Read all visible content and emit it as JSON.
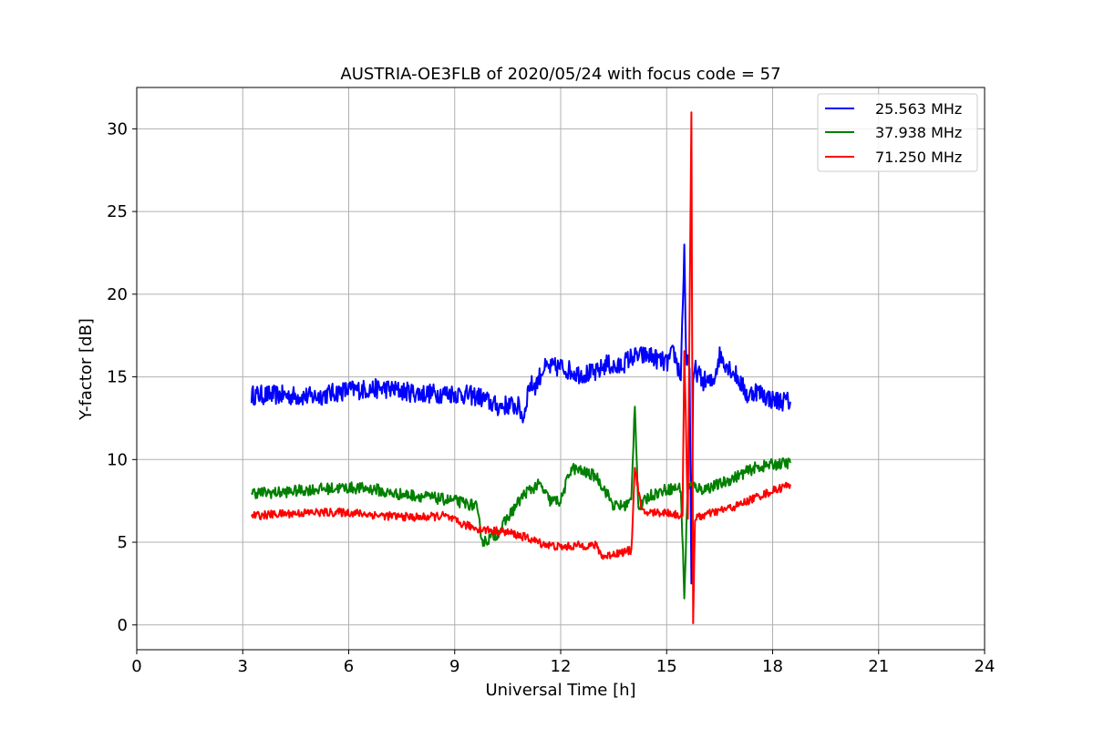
{
  "chart_data": {
    "type": "line",
    "title": "AUSTRIA-OE3FLB of 2020/05/24 with focus code = 57",
    "xlabel": "Universal Time [h]",
    "ylabel": "Y-factor [dB]",
    "xlim": [
      0,
      24
    ],
    "ylim": [
      -1.5,
      32.5
    ],
    "xticks": [
      "0",
      "3",
      "6",
      "9",
      "12",
      "15",
      "18",
      "21",
      "24"
    ],
    "yticks": [
      "0",
      "5",
      "10",
      "15",
      "20",
      "25",
      "30"
    ],
    "grid": true,
    "legend_position": "top-right",
    "series": [
      {
        "name": "25.563 MHz",
        "color": "#0000ff",
        "noise": 0.6,
        "x": [
          3.25,
          4,
          5,
          6,
          7,
          8,
          9,
          9.7,
          10.2,
          10.5,
          10.8,
          10.95,
          11.1,
          11.3,
          11.5,
          12,
          12.5,
          13,
          13.3,
          13.6,
          14,
          14.5,
          15,
          15.2,
          15.4,
          15.5,
          15.55,
          15.65,
          15.7,
          15.75,
          15.8,
          16,
          16.3,
          16.5,
          17,
          17.3,
          17.5,
          18,
          18.5
        ],
        "y": [
          13.9,
          13.9,
          13.8,
          14.2,
          14.3,
          14,
          14,
          13.8,
          13.2,
          13.3,
          13.2,
          12.5,
          14.5,
          14.5,
          15.5,
          15.6,
          15.2,
          15.2,
          15.8,
          15.5,
          16.2,
          16.3,
          15.8,
          16.5,
          15,
          23,
          16,
          15.5,
          2.5,
          14.8,
          15.5,
          14.8,
          14.6,
          16.3,
          15,
          13.8,
          14.2,
          13.6,
          13.5
        ]
      },
      {
        "name": "37.938 MHz",
        "color": "#008000",
        "noise": 0.35,
        "x": [
          3.25,
          4,
          5,
          6,
          6.8,
          7,
          8,
          9,
          9.6,
          9.8,
          10.2,
          10.6,
          11,
          11.4,
          11.7,
          12,
          12.3,
          12.7,
          13,
          13.3,
          13.5,
          13.8,
          14,
          14.1,
          14.2,
          14.5,
          15,
          15.4,
          15.5,
          15.6,
          16,
          16.5,
          17,
          17.5,
          18,
          18.5
        ],
        "y": [
          8,
          8,
          8.2,
          8.3,
          8.2,
          8,
          7.8,
          7.5,
          7.2,
          5,
          5.5,
          6.8,
          8,
          8.5,
          7.5,
          7.5,
          9.5,
          9.2,
          9,
          8,
          7.2,
          7.2,
          7.5,
          13.5,
          7,
          7.8,
          8.2,
          8.3,
          1.7,
          8.5,
          8.2,
          8.5,
          9,
          9.5,
          9.7,
          9.8
        ]
      },
      {
        "name": "71.250 MHz",
        "color": "#ff0000",
        "noise": 0.25,
        "x": [
          3.25,
          4,
          5,
          6,
          7,
          8,
          8.7,
          9.2,
          9.7,
          10.5,
          11,
          11.5,
          12,
          12.5,
          13,
          13.2,
          13.5,
          14,
          14.1,
          14.3,
          15,
          15.45,
          15.5,
          15.6,
          15.7,
          15.75,
          15.8,
          16,
          16.5,
          17,
          17.5,
          18,
          18.5
        ],
        "y": [
          6.6,
          6.7,
          6.8,
          6.8,
          6.6,
          6.5,
          6.6,
          6.1,
          5.8,
          5.6,
          5.3,
          4.9,
          4.7,
          4.8,
          4.8,
          4.1,
          4.3,
          4.5,
          9.5,
          6.8,
          6.8,
          6.6,
          16.5,
          6.6,
          31,
          0.1,
          6.4,
          6.6,
          6.9,
          7.2,
          7.7,
          8.1,
          8.5
        ]
      }
    ]
  }
}
